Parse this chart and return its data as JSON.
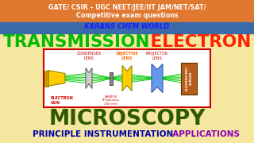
{
  "bg_color": "#f5e6a0",
  "header_orange_bg": "#e07830",
  "header_blue_bg": "#3a6aaa",
  "header_text1": "GATE/ CSIR – UGC NEET/JEE/IIT JAM/NET/SAT/",
  "header_text2": "Competitive exam questions",
  "header_text3": "KARANS CHEM WORLD",
  "header_text_color": "#ffffff",
  "header_text3_color": "#1a1aff",
  "title1": "TRANSMISSION",
  "title1_color": "#00bb00",
  "title2": " ELECTRON",
  "title2_color": "#ff2200",
  "title3": "MICROSCOPY",
  "title3_color": "#2d5a00",
  "bottom1": "PRINCIPLE INSTRUMENTATION",
  "bottom1_color": "#0000aa",
  "bottom2": "  APPLICATIONS",
  "bottom2_color": "#8800bb",
  "diagram_bg": "#ffffff",
  "diagram_border": "#cc0000",
  "electron_gun_color": "#ffcc00",
  "condenser_color": "#cccccc",
  "objective_color": "#ffcc00",
  "projector_color": "#6699ee",
  "screen_color": "#b85c1a",
  "beam_color": "#00cc00",
  "label_color_red": "#cc0000",
  "label_color_dark": "#333333"
}
